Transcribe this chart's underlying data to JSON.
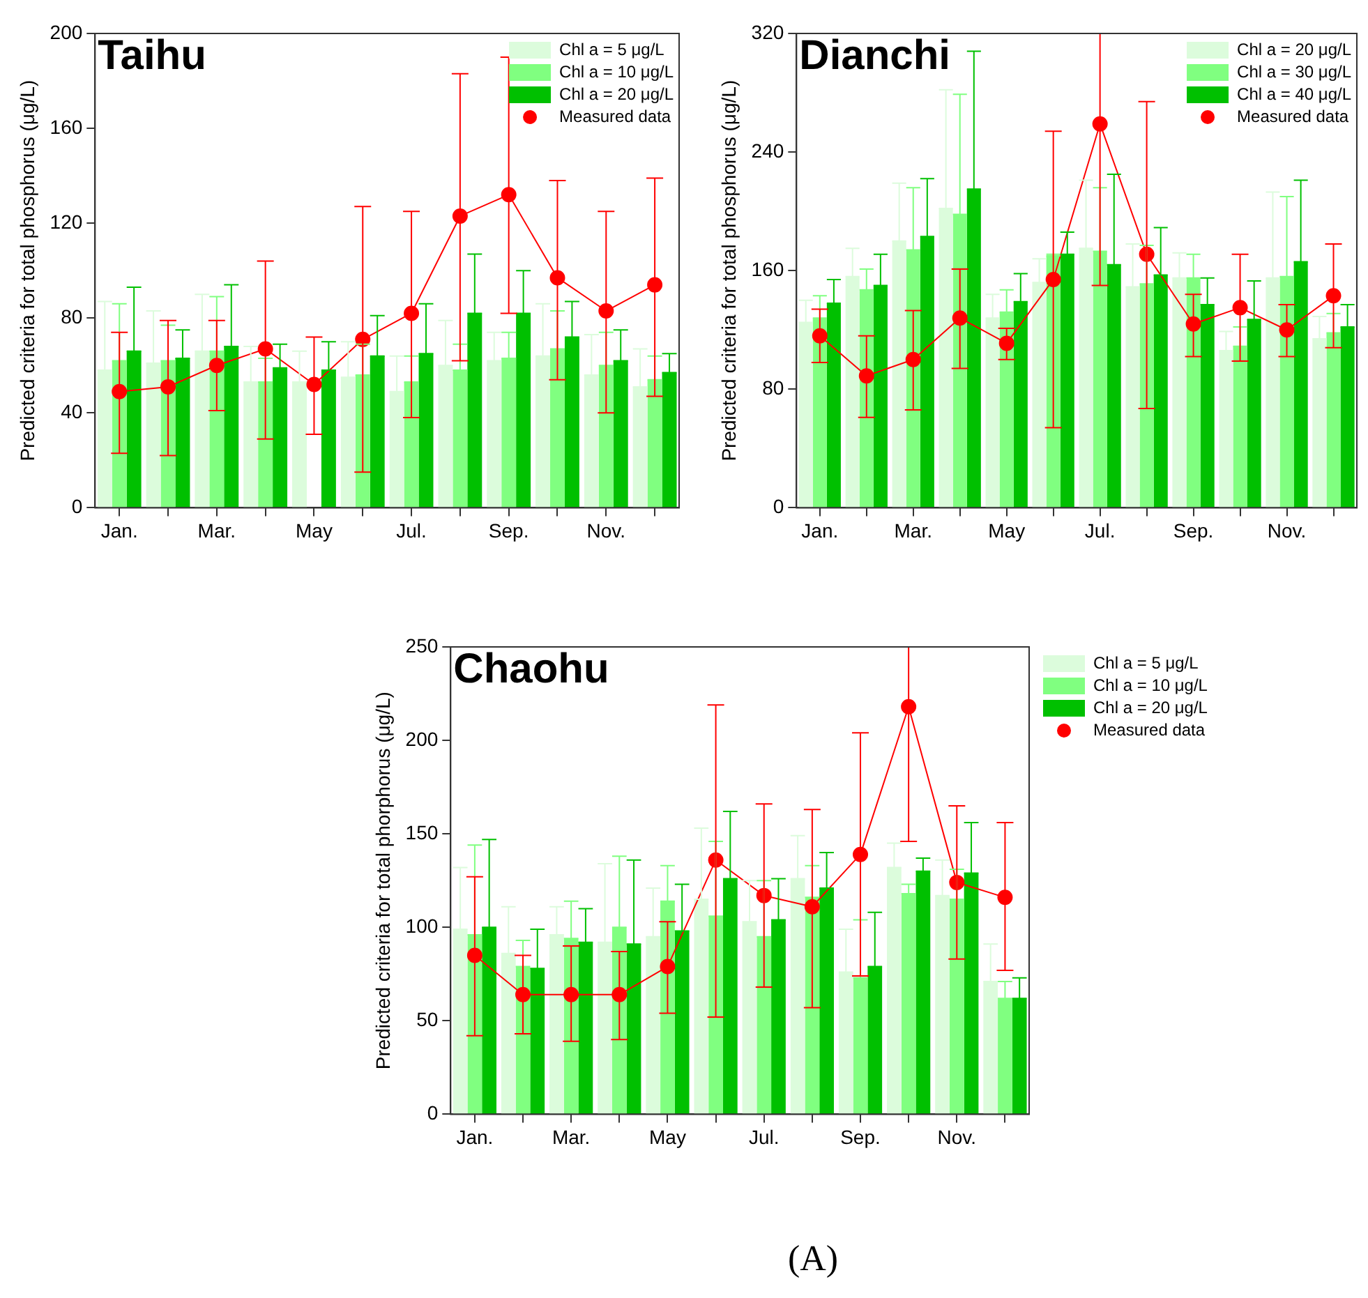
{
  "chart_data": [
    {
      "type": "bar",
      "title": "Taihu",
      "ylabel": "Predicted criteria for total phosphorus (μg/L)",
      "categories": [
        "Jan.",
        null,
        "Mar.",
        null,
        "May",
        null,
        "Jul.",
        null,
        "Sep.",
        null,
        "Nov.",
        null
      ],
      "ylim": [
        0,
        200
      ],
      "yticks": [
        0,
        40,
        80,
        120,
        160,
        200
      ],
      "grid": false,
      "legend": "top right",
      "marker": "circle",
      "line_style": "solid",
      "series": [
        {
          "name": "Chl a = 5 μg/L",
          "color": "#dcfcdc",
          "values": [
            58,
            61,
            66,
            53,
            53,
            55,
            49,
            60,
            62,
            64,
            56,
            51
          ],
          "errors": [
            [
              58,
              87
            ],
            [
              61,
              83
            ],
            [
              66,
              90
            ],
            [
              53,
              68
            ],
            [
              53,
              66
            ],
            [
              55,
              70
            ],
            [
              49,
              64
            ],
            [
              60,
              79
            ],
            [
              62,
              74
            ],
            [
              64,
              86
            ],
            [
              56,
              73
            ],
            [
              51,
              67
            ]
          ]
        },
        {
          "name": "Chl a = 10 μg/L",
          "color": "#80ff80",
          "values": [
            62,
            62,
            66,
            53,
            null,
            56,
            53,
            58,
            63,
            67,
            60,
            54
          ],
          "errors": [
            [
              62,
              86
            ],
            [
              62,
              77
            ],
            [
              66,
              89
            ],
            [
              53,
              63
            ],
            null,
            [
              56,
              69
            ],
            [
              53,
              64
            ],
            [
              58,
              69
            ],
            [
              63,
              74
            ],
            [
              67,
              83
            ],
            [
              60,
              74
            ],
            [
              54,
              64
            ]
          ]
        },
        {
          "name": "Chl a = 20 μg/L",
          "color": "#00c000",
          "values": [
            66,
            63,
            68,
            59,
            58,
            64,
            65,
            82,
            82,
            72,
            62,
            57
          ],
          "errors": [
            [
              66,
              93
            ],
            [
              63,
              75
            ],
            [
              68,
              94
            ],
            [
              59,
              69
            ],
            [
              58,
              70
            ],
            [
              64,
              81
            ],
            [
              65,
              86
            ],
            [
              82,
              107
            ],
            [
              82,
              100
            ],
            [
              72,
              87
            ],
            [
              62,
              75
            ],
            [
              57,
              65
            ]
          ]
        },
        {
          "name": "Measured data",
          "type": "line",
          "color": "#ff0000",
          "values": [
            49,
            51,
            60,
            67,
            52,
            71,
            82,
            123,
            132,
            97,
            83,
            94
          ],
          "errors": [
            [
              23,
              74
            ],
            [
              22,
              79
            ],
            [
              41,
              79
            ],
            [
              29,
              104
            ],
            [
              31,
              72
            ],
            [
              15,
              127
            ],
            [
              38,
              125
            ],
            [
              62,
              183
            ],
            [
              82,
              190
            ],
            [
              54,
              138
            ],
            [
              40,
              125
            ],
            [
              47,
              139
            ]
          ]
        }
      ]
    },
    {
      "type": "bar",
      "title": "Dianchi",
      "ylabel": "Predicted criteria for total phosphorus (μg/L)",
      "categories": [
        "Jan.",
        null,
        "Mar.",
        null,
        "May",
        null,
        "Jul.",
        null,
        "Sep.",
        null,
        "Nov.",
        null
      ],
      "ylim": [
        0,
        320
      ],
      "yticks": [
        0,
        80,
        160,
        240,
        320
      ],
      "grid": false,
      "legend": "top right",
      "marker": "circle",
      "line_style": "solid",
      "series": [
        {
          "name": "Chl a = 20 μg/L",
          "color": "#dcfcdc",
          "values": [
            125,
            156,
            180,
            202,
            128,
            152,
            175,
            149,
            155,
            106,
            155,
            114
          ],
          "errors": [
            [
              125,
              140
            ],
            [
              156,
              175
            ],
            [
              180,
              219
            ],
            [
              202,
              282
            ],
            [
              128,
              144
            ],
            [
              152,
              168
            ],
            [
              175,
              221
            ],
            [
              149,
              178
            ],
            [
              155,
              172
            ],
            [
              106,
              119
            ],
            [
              155,
              213
            ],
            [
              114,
              129
            ]
          ]
        },
        {
          "name": "Chl a = 30 μg/L",
          "color": "#80ff80",
          "values": [
            128,
            147,
            174,
            198,
            132,
            170,
            173,
            151,
            155,
            109,
            156,
            118
          ],
          "errors": [
            [
              128,
              143
            ],
            [
              147,
              161
            ],
            [
              174,
              216
            ],
            [
              198,
              279
            ],
            [
              132,
              147
            ],
            [
              170,
              171
            ],
            [
              173,
              216
            ],
            [
              151,
              177
            ],
            [
              155,
              171
            ],
            [
              109,
              122
            ],
            [
              156,
              210
            ],
            [
              118,
              131
            ]
          ]
        },
        {
          "name": "Chl a = 40 μg/L",
          "color": "#00c000",
          "values": [
            138,
            150,
            183,
            215,
            139,
            171,
            164,
            157,
            137,
            127,
            166,
            122
          ],
          "errors": [
            [
              138,
              154
            ],
            [
              150,
              171
            ],
            [
              183,
              222
            ],
            [
              215,
              308
            ],
            [
              139,
              158
            ],
            [
              171,
              186
            ],
            [
              164,
              225
            ],
            [
              157,
              189
            ],
            [
              137,
              155
            ],
            [
              127,
              153
            ],
            [
              166,
              221
            ],
            [
              122,
              137
            ]
          ]
        },
        {
          "name": "Measured data",
          "type": "line",
          "color": "#ff0000",
          "values": [
            116,
            89,
            100,
            128,
            111,
            154,
            259,
            171,
            124,
            135,
            120,
            143
          ],
          "errors": [
            [
              98,
              134
            ],
            [
              61,
              116
            ],
            [
              66,
              133
            ],
            [
              94,
              161
            ],
            [
              100,
              121
            ],
            [
              54,
              254
            ],
            [
              150,
              320
            ],
            [
              67,
              274
            ],
            [
              102,
              144
            ],
            [
              99,
              171
            ],
            [
              102,
              137
            ],
            [
              108,
              178
            ]
          ]
        }
      ]
    },
    {
      "type": "bar",
      "title": "Chaohu",
      "ylabel": "Predicted criteria for total phorphorus (μg/L)",
      "categories": [
        "Jan.",
        null,
        "Mar.",
        null,
        "May",
        null,
        "Jul.",
        null,
        "Sep.",
        null,
        "Nov.",
        null
      ],
      "ylim": [
        0,
        250
      ],
      "yticks": [
        0,
        50,
        100,
        150,
        200,
        250
      ],
      "grid": false,
      "legend": "right",
      "marker": "circle",
      "line_style": "solid",
      "annotations": [
        "(A)"
      ],
      "series": [
        {
          "name": "Chl a = 5 μg/L",
          "color": "#dcfcdc",
          "values": [
            99,
            86,
            96,
            92,
            95,
            115,
            103,
            126,
            76,
            132,
            117,
            71
          ],
          "errors": [
            [
              99,
              132
            ],
            [
              86,
              111
            ],
            [
              96,
              111
            ],
            [
              92,
              134
            ],
            [
              95,
              121
            ],
            [
              115,
              153
            ],
            [
              103,
              125
            ],
            [
              126,
              149
            ],
            [
              76,
              99
            ],
            [
              132,
              145
            ],
            [
              117,
              136
            ],
            [
              71,
              91
            ]
          ]
        },
        {
          "name": "Chl a = 10 μg/L",
          "color": "#80ff80",
          "values": [
            96,
            79,
            94,
            100,
            114,
            106,
            95,
            116,
            73,
            118,
            115,
            62
          ],
          "errors": [
            [
              96,
              144
            ],
            [
              79,
              93
            ],
            [
              94,
              114
            ],
            [
              100,
              138
            ],
            [
              114,
              133
            ],
            [
              106,
              146
            ],
            [
              95,
              125
            ],
            [
              116,
              133
            ],
            [
              73,
              104
            ],
            [
              118,
              123
            ],
            [
              115,
              131
            ],
            [
              62,
              71
            ]
          ]
        },
        {
          "name": "Chl a = 20 μg/L",
          "color": "#00c000",
          "values": [
            100,
            78,
            92,
            91,
            98,
            126,
            104,
            121,
            79,
            130,
            129,
            62
          ],
          "errors": [
            [
              100,
              147
            ],
            [
              78,
              99
            ],
            [
              92,
              110
            ],
            [
              91,
              136
            ],
            [
              98,
              123
            ],
            [
              126,
              162
            ],
            [
              104,
              126
            ],
            [
              121,
              140
            ],
            [
              79,
              108
            ],
            [
              130,
              137
            ],
            [
              129,
              156
            ],
            [
              62,
              73
            ]
          ]
        },
        {
          "name": "Measured data",
          "type": "line",
          "color": "#ff0000",
          "values": [
            85,
            64,
            64,
            64,
            79,
            136,
            117,
            111,
            139,
            218,
            124,
            116
          ],
          "errors": [
            [
              42,
              127
            ],
            [
              43,
              85
            ],
            [
              39,
              90
            ],
            [
              40,
              87
            ],
            [
              54,
              103
            ],
            [
              52,
              219
            ],
            [
              68,
              166
            ],
            [
              57,
              163
            ],
            [
              74,
              204
            ],
            [
              146,
              250
            ],
            [
              83,
              165
            ],
            [
              77,
              156
            ]
          ]
        }
      ]
    }
  ]
}
